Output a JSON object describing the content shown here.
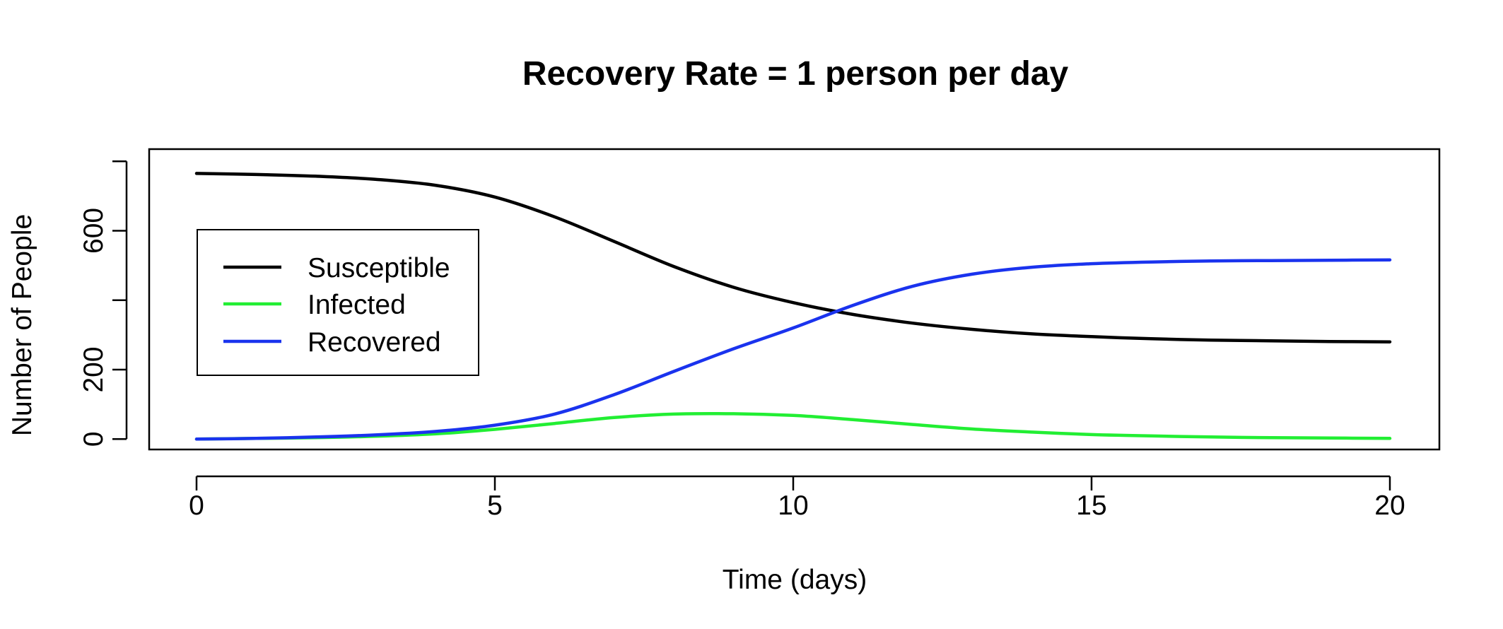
{
  "chart_data": {
    "type": "line",
    "title": "Recovery Rate = 1 person per day",
    "xlabel": "Time (days)",
    "ylabel": "Number of People",
    "xlim": [
      0,
      20
    ],
    "ylim": [
      -30,
      835
    ],
    "x_ticks": [
      0,
      5,
      10,
      15,
      20
    ],
    "x_tick_labels": [
      "0",
      "5",
      "10",
      "15",
      "20"
    ],
    "y_ticks": [
      0,
      200,
      400,
      600,
      800
    ],
    "y_tick_labels": [
      "0",
      "200",
      "",
      "600",
      ""
    ],
    "grid": false,
    "legend_position": "left",
    "x": [
      0,
      1,
      2,
      3,
      4,
      5,
      6,
      7,
      8,
      9,
      10,
      11,
      12,
      13,
      14,
      15,
      16,
      17,
      18,
      19,
      20
    ],
    "series": [
      {
        "name": "Susceptible",
        "color": "#000000",
        "values": [
          765,
          762,
          757,
          748,
          731,
          697,
          640,
          569,
          497,
          437,
          393,
          359,
          334,
          316,
          303,
          295,
          289,
          285,
          283,
          281,
          280
        ]
      },
      {
        "name": "Infected",
        "color": "#22ee33",
        "values": [
          0,
          2,
          4,
          8,
          15,
          28,
          45,
          62,
          72,
          73,
          68,
          56,
          42,
          29,
          20,
          13,
          9,
          6,
          4,
          3,
          2
        ]
      },
      {
        "name": "Recovered",
        "color": "#1a33ee",
        "values": [
          0,
          2,
          6,
          12,
          22,
          40,
          72,
          128,
          195,
          260,
          320,
          385,
          440,
          475,
          495,
          505,
          510,
          513,
          514,
          515,
          516
        ]
      }
    ]
  }
}
